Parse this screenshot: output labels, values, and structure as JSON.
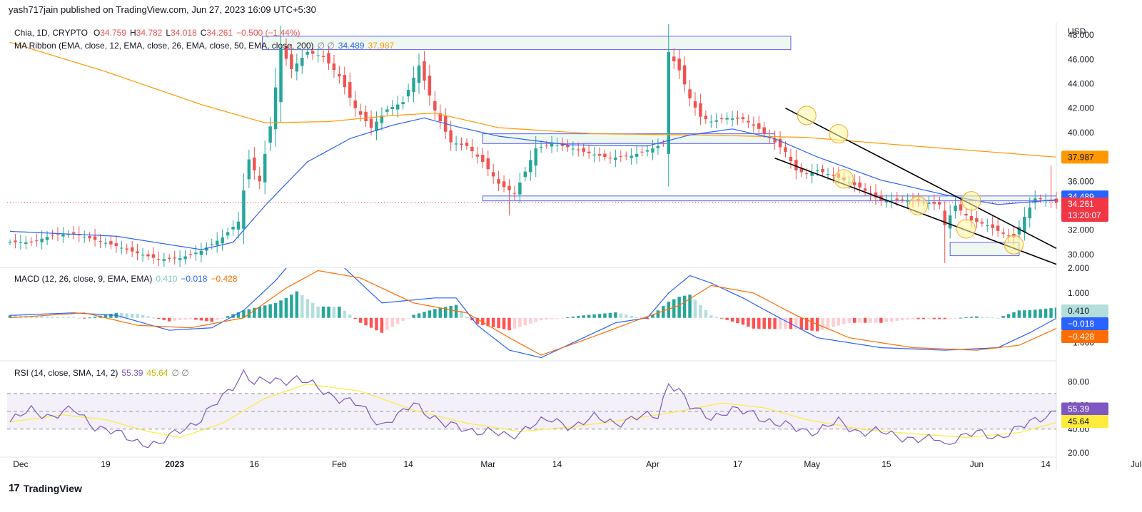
{
  "header": {
    "published": "yash717jain published on TradingView.com, Jun 27, 2023 16:09 UTC+5:30"
  },
  "footer": {
    "brand": "TradingView",
    "logo": "tradingview-logo-icon"
  },
  "colors": {
    "up": "#26a69a",
    "down": "#ef5350",
    "ema_fast": "#2962ff",
    "ema_slow": "#ff9800",
    "macd": "#2962ff",
    "signal": "#ff6d00",
    "rsi": "#7e57c2",
    "rsi_ma": "#ffeb3b"
  },
  "price_legend": {
    "symbol": "Chia, 1D, CRYPTO",
    "o_label": "O",
    "o": "34.759",
    "h_label": "H",
    "h": "34.782",
    "l_label": "L",
    "l": "34.018",
    "c_label": "C",
    "c": "34.261",
    "chg": "−0.500 (−1.44%)"
  },
  "ma_legend": {
    "label": "MA Ribbon (EMA, close, 12, EMA, close, 26, EMA, close, 50, EMA, close, 200)",
    "sep": "∅ ∅",
    "v1": "34.489",
    "v2": "37.987"
  },
  "macd_legend": {
    "label": "MACD (12, 26, close, 9, EMA, EMA)",
    "v1": "0.410",
    "v2": "−0.018",
    "v3": "−0.428"
  },
  "rsi_legend": {
    "label": "RSI (14, close, SMA, 14, 2)",
    "v1": "55.39",
    "v2": "45.64",
    "sep": "∅ ∅"
  },
  "chart_data": {
    "type": "candlestick",
    "currency": "USD",
    "price_axis": {
      "ylim": [
        29.0,
        49.0
      ],
      "ticks": [
        "48.000",
        "46.000",
        "44.000",
        "42.000",
        "40.000",
        "38.000",
        "36.000",
        "34.000",
        "32.000",
        "30.000"
      ]
    },
    "macd_axis": {
      "ylim": [
        -1.7,
        2.0
      ],
      "ticks": [
        "2.000",
        "1.000",
        "−1.000"
      ]
    },
    "rsi_axis": {
      "ylim": [
        17,
        97
      ],
      "ticks": [
        "80.00",
        "60.00",
        "40.00",
        "20.00"
      ],
      "band": [
        40,
        70
      ]
    },
    "x_labels": [
      {
        "text": "Dec",
        "day": 2
      },
      {
        "text": "19",
        "day": 18
      },
      {
        "text": "2023",
        "day": 31
      },
      {
        "text": "16",
        "day": 46
      },
      {
        "text": "Feb",
        "day": 62
      },
      {
        "text": "14",
        "day": 75
      },
      {
        "text": "Mar",
        "day": 90
      },
      {
        "text": "14",
        "day": 103
      },
      {
        "text": "Apr",
        "day": 121
      },
      {
        "text": "17",
        "day": 137
      },
      {
        "text": "May",
        "day": 151
      },
      {
        "text": "15",
        "day": 165
      },
      {
        "text": "Jun",
        "day": 182
      },
      {
        "text": "14",
        "day": 195
      },
      {
        "text": "Jul",
        "day": 212
      }
    ],
    "badges": {
      "ema200": {
        "value": "37.987",
        "color": "#ff9800"
      },
      "ema50": {
        "value": "34.489",
        "color": "#2962ff"
      },
      "close": {
        "value": "34.261",
        "time": "13:20:07",
        "color": "#f23645"
      },
      "macd_hist": {
        "value": "0.410",
        "color": "#b2dfdb"
      },
      "macd": {
        "value": "−0.018",
        "color": "#2962ff"
      },
      "signal": {
        "value": "−0.428",
        "color": "#ff6d00"
      },
      "rsi": {
        "value": "55.39",
        "color": "#7e57c2"
      },
      "rsi_ma": {
        "value": "45.64",
        "color": "#ffeb3b"
      }
    },
    "close_anchors": [
      [
        0,
        31.0
      ],
      [
        4,
        31.0
      ],
      [
        8,
        31.6
      ],
      [
        12,
        31.7
      ],
      [
        16,
        31.2
      ],
      [
        20,
        30.7
      ],
      [
        24,
        30.1
      ],
      [
        28,
        29.6
      ],
      [
        32,
        29.7
      ],
      [
        36,
        30.3
      ],
      [
        40,
        31.4
      ],
      [
        43,
        32.7
      ],
      [
        45,
        37.8
      ],
      [
        47,
        36.0
      ],
      [
        49,
        40.5
      ],
      [
        51,
        46.9
      ],
      [
        53,
        45.2
      ],
      [
        56,
        46.6
      ],
      [
        59,
        46.2
      ],
      [
        62,
        44.6
      ],
      [
        65,
        42.0
      ],
      [
        68,
        40.4
      ],
      [
        71,
        41.9
      ],
      [
        74,
        42.5
      ],
      [
        77,
        45.5
      ],
      [
        80,
        41.8
      ],
      [
        83,
        39.2
      ],
      [
        86,
        38.9
      ],
      [
        89,
        37.6
      ],
      [
        92,
        35.8
      ],
      [
        95,
        35.0
      ],
      [
        97,
        36.8
      ],
      [
        99,
        38.7
      ],
      [
        102,
        39.1
      ],
      [
        105,
        38.8
      ],
      [
        109,
        38.3
      ],
      [
        113,
        37.9
      ],
      [
        117,
        38.1
      ],
      [
        121,
        38.7
      ],
      [
        123,
        39.1
      ],
      [
        124,
        46.6
      ],
      [
        126,
        45.1
      ],
      [
        128,
        42.8
      ],
      [
        130,
        41.3
      ],
      [
        132,
        40.9
      ],
      [
        135,
        41.2
      ],
      [
        138,
        41.1
      ],
      [
        141,
        40.3
      ],
      [
        144,
        39.2
      ],
      [
        146,
        38.4
      ],
      [
        148,
        36.9
      ],
      [
        150,
        36.6
      ],
      [
        152,
        36.9
      ],
      [
        156,
        36.3
      ],
      [
        160,
        35.5
      ],
      [
        164,
        34.4
      ],
      [
        168,
        34.5
      ],
      [
        172,
        34.3
      ],
      [
        175,
        34.1
      ],
      [
        176,
        32.4
      ],
      [
        178,
        34.0
      ],
      [
        181,
        32.8
      ],
      [
        184,
        32.4
      ],
      [
        187,
        31.7
      ],
      [
        189,
        31.4
      ],
      [
        191,
        33.1
      ],
      [
        193,
        34.6
      ],
      [
        196,
        34.4
      ],
      [
        197,
        34.261
      ]
    ],
    "ema50_anchors": [
      [
        0,
        31.9
      ],
      [
        20,
        31.5
      ],
      [
        36,
        30.4
      ],
      [
        42,
        31.0
      ],
      [
        48,
        34.0
      ],
      [
        56,
        37.6
      ],
      [
        64,
        39.5
      ],
      [
        72,
        40.6
      ],
      [
        78,
        41.2
      ],
      [
        84,
        40.5
      ],
      [
        92,
        39.7
      ],
      [
        105,
        39.0
      ],
      [
        120,
        38.9
      ],
      [
        128,
        39.8
      ],
      [
        136,
        40.3
      ],
      [
        144,
        39.5
      ],
      [
        152,
        38.0
      ],
      [
        164,
        36.1
      ],
      [
        176,
        34.9
      ],
      [
        186,
        34.1
      ],
      [
        197,
        34.489
      ]
    ],
    "ema200_anchors": [
      [
        0,
        47.4
      ],
      [
        18,
        45.0
      ],
      [
        36,
        42.3
      ],
      [
        48,
        40.8
      ],
      [
        60,
        40.9
      ],
      [
        72,
        41.4
      ],
      [
        80,
        41.6
      ],
      [
        92,
        40.4
      ],
      [
        110,
        39.9
      ],
      [
        130,
        39.8
      ],
      [
        150,
        39.6
      ],
      [
        170,
        38.9
      ],
      [
        185,
        38.4
      ],
      [
        197,
        37.987
      ]
    ],
    "macd_anchors": [
      [
        0,
        0.1
      ],
      [
        12,
        0.2
      ],
      [
        20,
        0.1
      ],
      [
        30,
        -0.5
      ],
      [
        38,
        -0.4
      ],
      [
        44,
        0.3
      ],
      [
        50,
        1.5
      ],
      [
        54,
        2.5
      ],
      [
        62,
        2.2
      ],
      [
        70,
        0.6
      ],
      [
        80,
        0.8
      ],
      [
        84,
        0.8
      ],
      [
        88,
        -0.3
      ],
      [
        94,
        -1.3
      ],
      [
        100,
        -1.6
      ],
      [
        106,
        -1.0
      ],
      [
        114,
        -0.2
      ],
      [
        120,
        0.0
      ],
      [
        124,
        1.0
      ],
      [
        128,
        1.7
      ],
      [
        132,
        1.4
      ],
      [
        138,
        0.8
      ],
      [
        144,
        0.1
      ],
      [
        152,
        -0.8
      ],
      [
        164,
        -1.2
      ],
      [
        176,
        -1.3
      ],
      [
        186,
        -1.2
      ],
      [
        192,
        -0.6
      ],
      [
        197,
        -0.018
      ]
    ],
    "signal_anchors": [
      [
        0,
        0.0
      ],
      [
        14,
        0.2
      ],
      [
        24,
        -0.3
      ],
      [
        34,
        -0.4
      ],
      [
        44,
        0.0
      ],
      [
        52,
        1.2
      ],
      [
        58,
        1.9
      ],
      [
        66,
        1.6
      ],
      [
        76,
        0.6
      ],
      [
        86,
        0.2
      ],
      [
        94,
        -0.8
      ],
      [
        100,
        -1.5
      ],
      [
        108,
        -0.9
      ],
      [
        118,
        -0.1
      ],
      [
        126,
        0.5
      ],
      [
        132,
        1.3
      ],
      [
        140,
        1.0
      ],
      [
        148,
        0.1
      ],
      [
        158,
        -0.8
      ],
      [
        170,
        -1.2
      ],
      [
        182,
        -1.3
      ],
      [
        190,
        -1.1
      ],
      [
        197,
        -0.428
      ]
    ],
    "rsi_anchors": [
      [
        0,
        46
      ],
      [
        4,
        56
      ],
      [
        8,
        51
      ],
      [
        12,
        56
      ],
      [
        16,
        43
      ],
      [
        20,
        36
      ],
      [
        24,
        30
      ],
      [
        28,
        26
      ],
      [
        32,
        40
      ],
      [
        36,
        48
      ],
      [
        40,
        67
      ],
      [
        44,
        88
      ],
      [
        46,
        78
      ],
      [
        50,
        82
      ],
      [
        54,
        82
      ],
      [
        58,
        75
      ],
      [
        62,
        66
      ],
      [
        66,
        59
      ],
      [
        70,
        44
      ],
      [
        74,
        53
      ],
      [
        76,
        62
      ],
      [
        78,
        56
      ],
      [
        82,
        43
      ],
      [
        86,
        40
      ],
      [
        90,
        38
      ],
      [
        94,
        33
      ],
      [
        98,
        44
      ],
      [
        102,
        47
      ],
      [
        106,
        43
      ],
      [
        110,
        49
      ],
      [
        114,
        46
      ],
      [
        118,
        49
      ],
      [
        122,
        52
      ],
      [
        124,
        80
      ],
      [
        126,
        72
      ],
      [
        128,
        58
      ],
      [
        132,
        51
      ],
      [
        136,
        55
      ],
      [
        140,
        54
      ],
      [
        144,
        44
      ],
      [
        148,
        41
      ],
      [
        152,
        38
      ],
      [
        156,
        46
      ],
      [
        160,
        38
      ],
      [
        164,
        37
      ],
      [
        168,
        34
      ],
      [
        172,
        30
      ],
      [
        175,
        32
      ],
      [
        176,
        26
      ],
      [
        178,
        33
      ],
      [
        182,
        36
      ],
      [
        186,
        34
      ],
      [
        190,
        40
      ],
      [
        194,
        50
      ],
      [
        197,
        55.39
      ]
    ],
    "rsi_ma_anchors": [
      [
        0,
        46
      ],
      [
        10,
        52
      ],
      [
        18,
        48
      ],
      [
        26,
        38
      ],
      [
        32,
        33
      ],
      [
        40,
        45
      ],
      [
        48,
        66
      ],
      [
        56,
        78
      ],
      [
        66,
        72
      ],
      [
        76,
        56
      ],
      [
        86,
        45
      ],
      [
        96,
        38
      ],
      [
        106,
        42
      ],
      [
        116,
        48
      ],
      [
        126,
        55
      ],
      [
        134,
        62
      ],
      [
        142,
        58
      ],
      [
        150,
        48
      ],
      [
        160,
        40
      ],
      [
        170,
        36
      ],
      [
        180,
        33
      ],
      [
        190,
        37
      ],
      [
        197,
        45.64
      ]
    ],
    "zones": [
      {
        "d0": 47.5,
        "d1": 147,
        "p0": 47.9,
        "p1": 46.8
      },
      {
        "d0": 89,
        "d1": 144,
        "p0": 39.9,
        "p1": 39.1
      },
      {
        "d0": 89,
        "d1": 197,
        "p0": 34.8,
        "p1": 34.4
      },
      {
        "d0": 177,
        "d1": 190,
        "p0": 31.0,
        "p1": 29.9
      }
    ],
    "trendlines": [
      {
        "d0": 146,
        "p0": 42.0,
        "d1": 197,
        "p1": 30.5
      },
      {
        "d0": 144,
        "p0": 37.9,
        "d1": 197,
        "p1": 29.2
      }
    ],
    "circles": [
      [
        150,
        41.4
      ],
      [
        156,
        39.9
      ],
      [
        157,
        36.2
      ],
      [
        171,
        34.0
      ],
      [
        181,
        34.4
      ],
      [
        180,
        32.1
      ],
      [
        189,
        30.8
      ]
    ]
  }
}
